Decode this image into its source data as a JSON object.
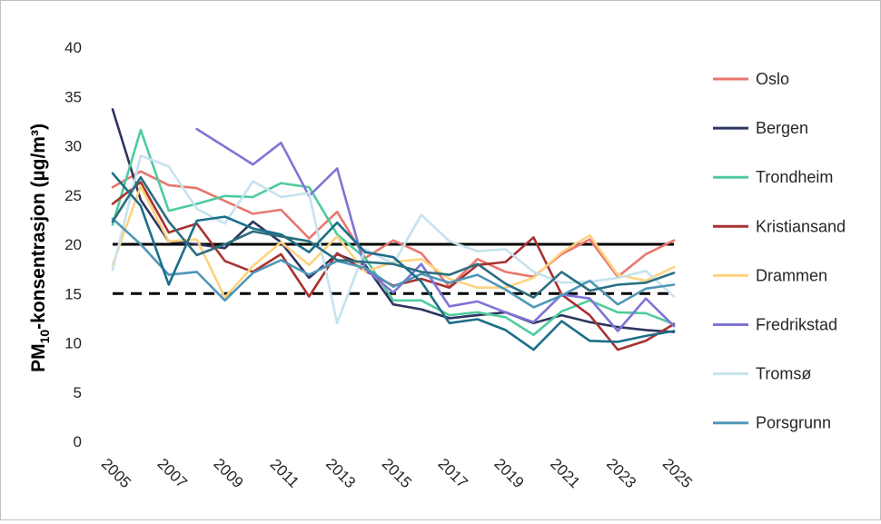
{
  "chart_data": {
    "type": "line",
    "ylabel_main": "PM",
    "ylabel_sub": "10",
    "ylabel_rest": "-konsentrasjon (µg/m³)",
    "ylim": [
      0,
      40
    ],
    "yticks": [
      0,
      5,
      10,
      15,
      20,
      25,
      30,
      35,
      40
    ],
    "xlim": [
      2005,
      2025
    ],
    "xticks": [
      2005,
      2007,
      2009,
      2011,
      2013,
      2015,
      2017,
      2019,
      2021,
      2023,
      2025
    ],
    "grid": false,
    "legend": "right",
    "reference_lines": [
      {
        "value": 20,
        "style": "solid",
        "color": "#000000"
      },
      {
        "value": 15,
        "style": "dashed",
        "color": "#000000"
      }
    ],
    "series": [
      {
        "name": "Oslo",
        "color": "#E8776E",
        "x": [
          2005,
          2006,
          2007,
          2008,
          2009,
          2010,
          2011,
          2012,
          2013,
          2014,
          2015,
          2016,
          2017,
          2018,
          2019,
          2020,
          2021,
          2022,
          2023,
          2024,
          2025
        ],
        "y": [
          25.8,
          27.4,
          26.0,
          25.7,
          24.4,
          23.1,
          23.5,
          20.6,
          23.3,
          18.6,
          20.4,
          19.1,
          15.7,
          18.5,
          17.2,
          16.7,
          19.0,
          20.5,
          16.7,
          19.0,
          20.4
        ]
      },
      {
        "name": "Bergen",
        "color": "#2E3560",
        "x": [
          2005,
          2006,
          2007,
          2008,
          2009,
          2010,
          2011,
          2012,
          2013,
          2014,
          2015,
          2016,
          2017,
          2018,
          2019,
          2020,
          2021,
          2022,
          2023,
          2024,
          2025
        ],
        "y": [
          33.7,
          24.5,
          20.3,
          20.0,
          19.6,
          22.3,
          20.2,
          16.6,
          19.0,
          17.9,
          13.9,
          13.4,
          12.5,
          12.8,
          13.1,
          12.0,
          12.8,
          12.1,
          11.6,
          11.3,
          11.1
        ]
      },
      {
        "name": "Trondheim",
        "color": "#4FCB9E",
        "x": [
          2005,
          2006,
          2007,
          2008,
          2009,
          2010,
          2011,
          2012,
          2013,
          2014,
          2015,
          2016,
          2017,
          2018,
          2019,
          2020,
          2021,
          2022,
          2023,
          2024,
          2025
        ],
        "y": [
          22.0,
          31.6,
          23.4,
          24.1,
          24.9,
          24.8,
          26.2,
          25.8,
          21.0,
          18.6,
          14.3,
          14.3,
          12.8,
          13.1,
          12.6,
          10.8,
          13.2,
          14.3,
          13.1,
          13.0,
          11.9
        ]
      },
      {
        "name": "Kristiansand",
        "color": "#A93232",
        "x": [
          2005,
          2006,
          2007,
          2008,
          2009,
          2010,
          2011,
          2012,
          2013,
          2014,
          2015,
          2016,
          2017,
          2018,
          2019,
          2020,
          2021,
          2022,
          2023,
          2024,
          2025
        ],
        "y": [
          24.1,
          26.3,
          21.2,
          22.1,
          18.3,
          17.2,
          19.0,
          14.7,
          19.1,
          17.3,
          15.8,
          16.5,
          15.6,
          17.9,
          18.2,
          20.7,
          14.9,
          12.8,
          9.3,
          10.2,
          11.9
        ]
      },
      {
        "name": "Drammen",
        "color": "#FFD27F",
        "x": [
          2005,
          2006,
          2007,
          2008,
          2009,
          2010,
          2011,
          2012,
          2013,
          2014,
          2015,
          2016,
          2017,
          2018,
          2019,
          2020,
          2021,
          2022,
          2023,
          2024,
          2025
        ],
        "y": [
          17.9,
          25.9,
          20.3,
          20.5,
          14.6,
          17.8,
          20.2,
          17.9,
          20.8,
          17.2,
          18.2,
          18.5,
          16.5,
          15.6,
          15.6,
          16.6,
          19.2,
          20.9,
          16.9,
          16.3,
          17.7
        ]
      },
      {
        "name": "Fredrikstad",
        "color": "#7E74D6",
        "x": [
          2008,
          2009,
          2010,
          2011,
          2012,
          2013,
          2014,
          2015,
          2016,
          2017,
          2018,
          2019,
          2020,
          2021,
          2022,
          2023,
          2024,
          2025
        ],
        "y": [
          31.7,
          29.9,
          28.1,
          30.3,
          24.9,
          27.7,
          17.5,
          15.1,
          18.0,
          13.7,
          14.2,
          13.1,
          12.1,
          14.9,
          14.5,
          11.2,
          14.5,
          11.7
        ]
      },
      {
        "name": "Tromsø",
        "color": "#C6E2EE",
        "x": [
          2005,
          2006,
          2007,
          2008,
          2009,
          2010,
          2011,
          2012,
          2013,
          2014,
          2015,
          2016,
          2017,
          2018,
          2019,
          2020,
          2021,
          2022,
          2023,
          2024,
          2025
        ],
        "y": [
          17.4,
          29.0,
          27.9,
          23.6,
          22.1,
          26.4,
          24.8,
          25.2,
          12.0,
          19.5,
          18.0,
          23.0,
          20.3,
          19.3,
          19.5,
          17.2,
          16.1,
          16.2,
          16.6,
          17.3,
          14.7
        ]
      },
      {
        "name": "Porsgrunn",
        "color": "#4F97B7",
        "x": [
          2005,
          2006,
          2007,
          2008,
          2009,
          2010,
          2011,
          2012,
          2013,
          2014,
          2015,
          2016,
          2017,
          2018,
          2019,
          2020,
          2021,
          2022,
          2023,
          2024,
          2025
        ],
        "y": [
          22.6,
          20.0,
          16.9,
          17.2,
          14.3,
          17.1,
          18.4,
          16.9,
          18.3,
          17.6,
          15.7,
          17.0,
          16.1,
          16.9,
          15.4,
          13.6,
          14.8,
          16.3,
          13.9,
          15.5,
          15.9
        ]
      },
      {
        "name": "",
        "color": "#1B6F89",
        "x": [
          2005,
          2006,
          2007,
          2008,
          2009,
          2010,
          2011,
          2012,
          2013,
          2014,
          2015,
          2016,
          2017,
          2018,
          2019,
          2020,
          2021,
          2022,
          2023,
          2024,
          2025
        ],
        "y": [
          27.2,
          23.9,
          15.9,
          22.4,
          22.8,
          21.6,
          21.0,
          19.2,
          22.2,
          19.2,
          18.7,
          16.2,
          12.0,
          12.4,
          11.3,
          9.3,
          12.2,
          10.2,
          10.1,
          10.7,
          11.2
        ]
      },
      {
        "name": "",
        "color": "#2A6E80",
        "x": [
          2005,
          2006,
          2007,
          2008,
          2009,
          2010,
          2011,
          2012,
          2013,
          2014,
          2015,
          2016,
          2017,
          2018,
          2019,
          2020,
          2021,
          2022,
          2023,
          2024,
          2025
        ],
        "y": [
          22.3,
          26.8,
          22.3,
          18.9,
          20.0,
          21.3,
          20.8,
          20.3,
          18.4,
          18.2,
          18.0,
          17.2,
          16.9,
          18.0,
          16.0,
          14.6,
          17.2,
          15.3,
          15.9,
          16.1,
          17.1
        ]
      }
    ]
  }
}
